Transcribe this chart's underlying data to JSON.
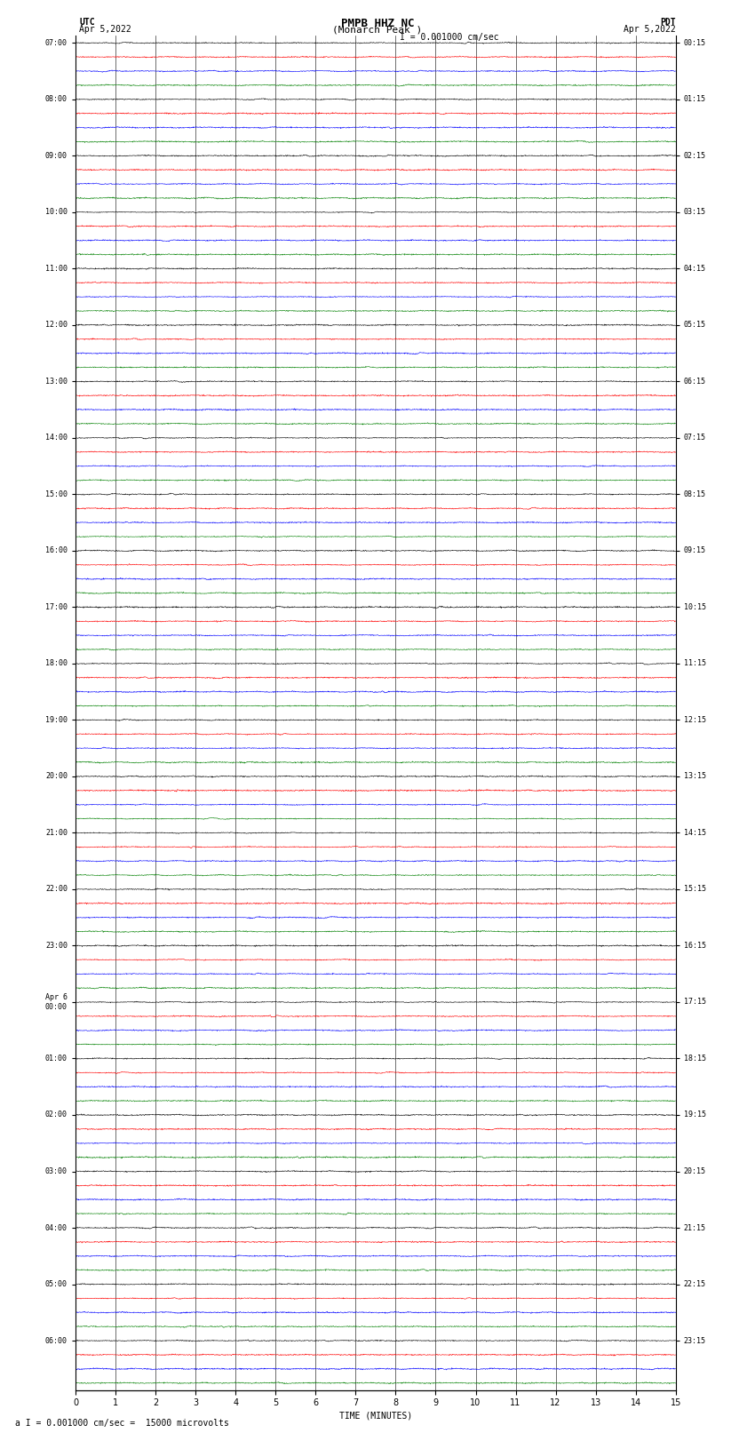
{
  "title_line1": "PMPB HHZ NC",
  "title_line2": "(Monarch Peak )",
  "title_scale": "I = 0.001000 cm/sec",
  "left_label": "UTC",
  "left_date": "Apr 5,2022",
  "right_label": "PDT",
  "right_date": "Apr 5,2022",
  "xlabel": "TIME (MINUTES)",
  "footer": "a I = 0.001000 cm/sec =  15000 microvolts",
  "xmin": 0,
  "xmax": 15,
  "colors": [
    "black",
    "red",
    "blue",
    "green"
  ],
  "background": "white",
  "utc_hours": [
    "07:00",
    "08:00",
    "09:00",
    "10:00",
    "11:00",
    "12:00",
    "13:00",
    "14:00",
    "15:00",
    "16:00",
    "17:00",
    "18:00",
    "19:00",
    "20:00",
    "21:00",
    "22:00",
    "23:00",
    "Apr 6\n00:00",
    "01:00",
    "02:00",
    "03:00",
    "04:00",
    "05:00",
    "06:00"
  ],
  "pdt_hours": [
    "00:15",
    "01:15",
    "02:15",
    "03:15",
    "04:15",
    "05:15",
    "06:15",
    "07:15",
    "08:15",
    "09:15",
    "10:15",
    "11:15",
    "12:15",
    "13:15",
    "14:15",
    "15:15",
    "16:15",
    "17:15",
    "18:15",
    "19:15",
    "20:15",
    "21:15",
    "22:15",
    "23:15"
  ],
  "n_hours": 24,
  "traces_per_hour": 4,
  "trace_amplitude": 0.08,
  "trace_linewidth": 0.4,
  "n_points": 1800
}
